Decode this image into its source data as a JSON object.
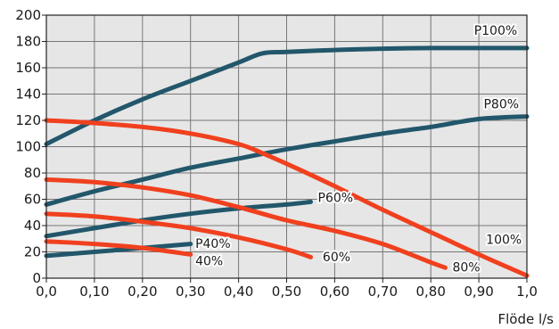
{
  "chart_data": {
    "type": "line",
    "title": "",
    "xlabel": "Flöde l/s",
    "ylabel": "",
    "xlim": [
      0,
      1.0
    ],
    "ylim": [
      0,
      200
    ],
    "grid": true,
    "x_ticks": [
      "0,0",
      "0,10",
      "0,20",
      "0,30",
      "0,40",
      "0,50",
      "0,60",
      "0,70",
      "0,80",
      "0,90",
      "1,0"
    ],
    "y_ticks": [
      "0",
      "20",
      "40",
      "60",
      "80",
      "100",
      "120",
      "140",
      "160",
      "180",
      "200"
    ],
    "colors": {
      "pressure": "#22576b",
      "power": "#f0401e",
      "grid": "#777777",
      "background": "#e6e6e6"
    },
    "series": [
      {
        "name": "P100%",
        "group": "pressure",
        "x": [
          0,
          0.1,
          0.2,
          0.3,
          0.4,
          0.45,
          0.5,
          0.6,
          0.7,
          0.8,
          0.9,
          1.0
        ],
        "y": [
          102,
          120,
          136,
          150,
          164,
          171,
          172,
          173.5,
          174.5,
          175,
          175,
          175
        ]
      },
      {
        "name": "P80%",
        "group": "pressure",
        "x": [
          0,
          0.1,
          0.2,
          0.3,
          0.4,
          0.5,
          0.6,
          0.7,
          0.8,
          0.9,
          1.0
        ],
        "y": [
          56,
          66,
          75,
          84,
          91,
          98,
          104,
          110,
          115,
          121,
          123
        ]
      },
      {
        "name": "P60%",
        "group": "pressure",
        "x": [
          0,
          0.1,
          0.2,
          0.3,
          0.4,
          0.5,
          0.55
        ],
        "y": [
          32,
          38,
          44,
          49,
          53,
          56,
          58
        ]
      },
      {
        "name": "P40%",
        "group": "pressure",
        "x": [
          0,
          0.1,
          0.2,
          0.3
        ],
        "y": [
          17,
          20,
          23,
          26
        ]
      },
      {
        "name": "100%",
        "group": "power",
        "x": [
          0,
          0.1,
          0.2,
          0.3,
          0.4,
          0.45,
          0.5,
          0.6,
          0.7,
          0.8,
          0.9,
          1.0
        ],
        "y": [
          120,
          118,
          115,
          110,
          102,
          95,
          87,
          70,
          52,
          35,
          18,
          2
        ]
      },
      {
        "name": "80%",
        "group": "power",
        "x": [
          0,
          0.1,
          0.2,
          0.3,
          0.4,
          0.5,
          0.6,
          0.7,
          0.8,
          0.83
        ],
        "y": [
          75,
          73,
          69,
          63,
          54,
          44,
          36,
          26,
          12,
          8
        ]
      },
      {
        "name": "60%",
        "group": "power",
        "x": [
          0,
          0.1,
          0.2,
          0.3,
          0.4,
          0.5,
          0.55
        ],
        "y": [
          49,
          47,
          43,
          38,
          31,
          22,
          16
        ]
      },
      {
        "name": "40%",
        "group": "power",
        "x": [
          0,
          0.1,
          0.2,
          0.3
        ],
        "y": [
          28,
          26,
          23,
          18
        ]
      }
    ],
    "series_labels": [
      {
        "text": "P100%",
        "x": 0.89,
        "y": 185
      },
      {
        "text": "P80%",
        "x": 0.91,
        "y": 129
      },
      {
        "text": "P60%",
        "x": 0.565,
        "y": 58
      },
      {
        "text": "P40%",
        "x": 0.31,
        "y": 23
      },
      {
        "text": "100%",
        "x": 0.915,
        "y": 26
      },
      {
        "text": "80%",
        "x": 0.845,
        "y": 5
      },
      {
        "text": "60%",
        "x": 0.575,
        "y": 13
      },
      {
        "text": "40%",
        "x": 0.31,
        "y": 10
      }
    ]
  }
}
